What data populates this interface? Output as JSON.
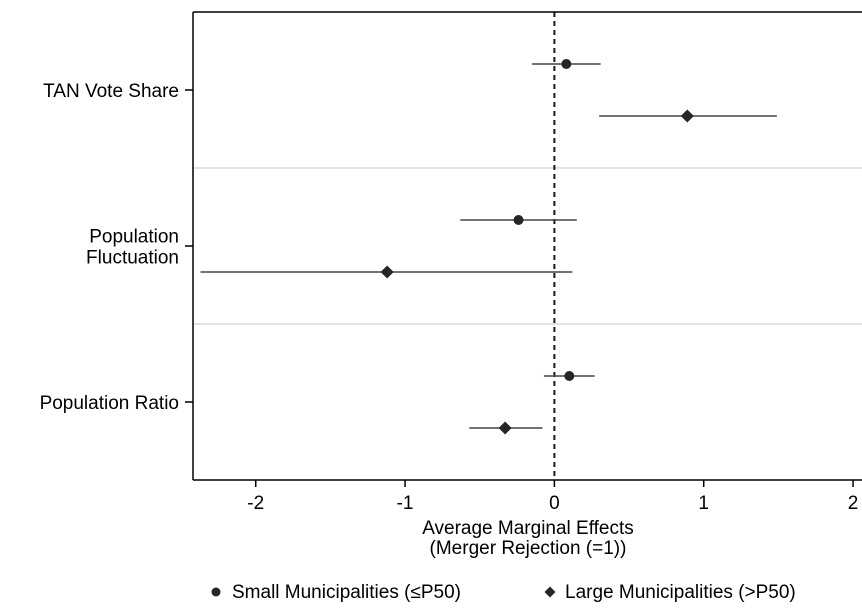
{
  "chart_data": {
    "type": "scatter",
    "orientation": "horizontal",
    "title": "",
    "xlabel": [
      "Average Marginal Effects",
      "(Merger Rejection (=1))"
    ],
    "ylabel": "",
    "xlim": [
      -2.42,
      2.06
    ],
    "xticks": [
      -2,
      -1,
      0,
      1,
      2
    ],
    "xtick_labels": [
      "-2",
      "-1",
      "0",
      "1",
      "2"
    ],
    "reference_line_x": 0,
    "grid": false,
    "legend_position": "bottom",
    "categories": [
      {
        "lines": [
          "TAN Vote Share"
        ]
      },
      {
        "lines": [
          "Population",
          "Fluctuation"
        ]
      },
      {
        "lines": [
          "Population Ratio"
        ]
      }
    ],
    "series": [
      {
        "name": "Small Municipalities (≤P50)",
        "marker": "circle",
        "color": "#262626",
        "points": [
          {
            "category": 0,
            "value": 0.08,
            "ci_low": -0.15,
            "ci_high": 0.31
          },
          {
            "category": 1,
            "value": -0.24,
            "ci_low": -0.63,
            "ci_high": 0.15
          },
          {
            "category": 2,
            "value": 0.1,
            "ci_low": -0.07,
            "ci_high": 0.27
          }
        ]
      },
      {
        "name": "Large Municipalities (>P50)",
        "marker": "diamond",
        "color": "#262626",
        "points": [
          {
            "category": 0,
            "value": 0.89,
            "ci_low": 0.3,
            "ci_high": 1.49
          },
          {
            "category": 1,
            "value": -1.12,
            "ci_low": -2.37,
            "ci_high": 0.12
          },
          {
            "category": 2,
            "value": -0.33,
            "ci_low": -0.57,
            "ci_high": -0.08
          }
        ]
      }
    ]
  }
}
